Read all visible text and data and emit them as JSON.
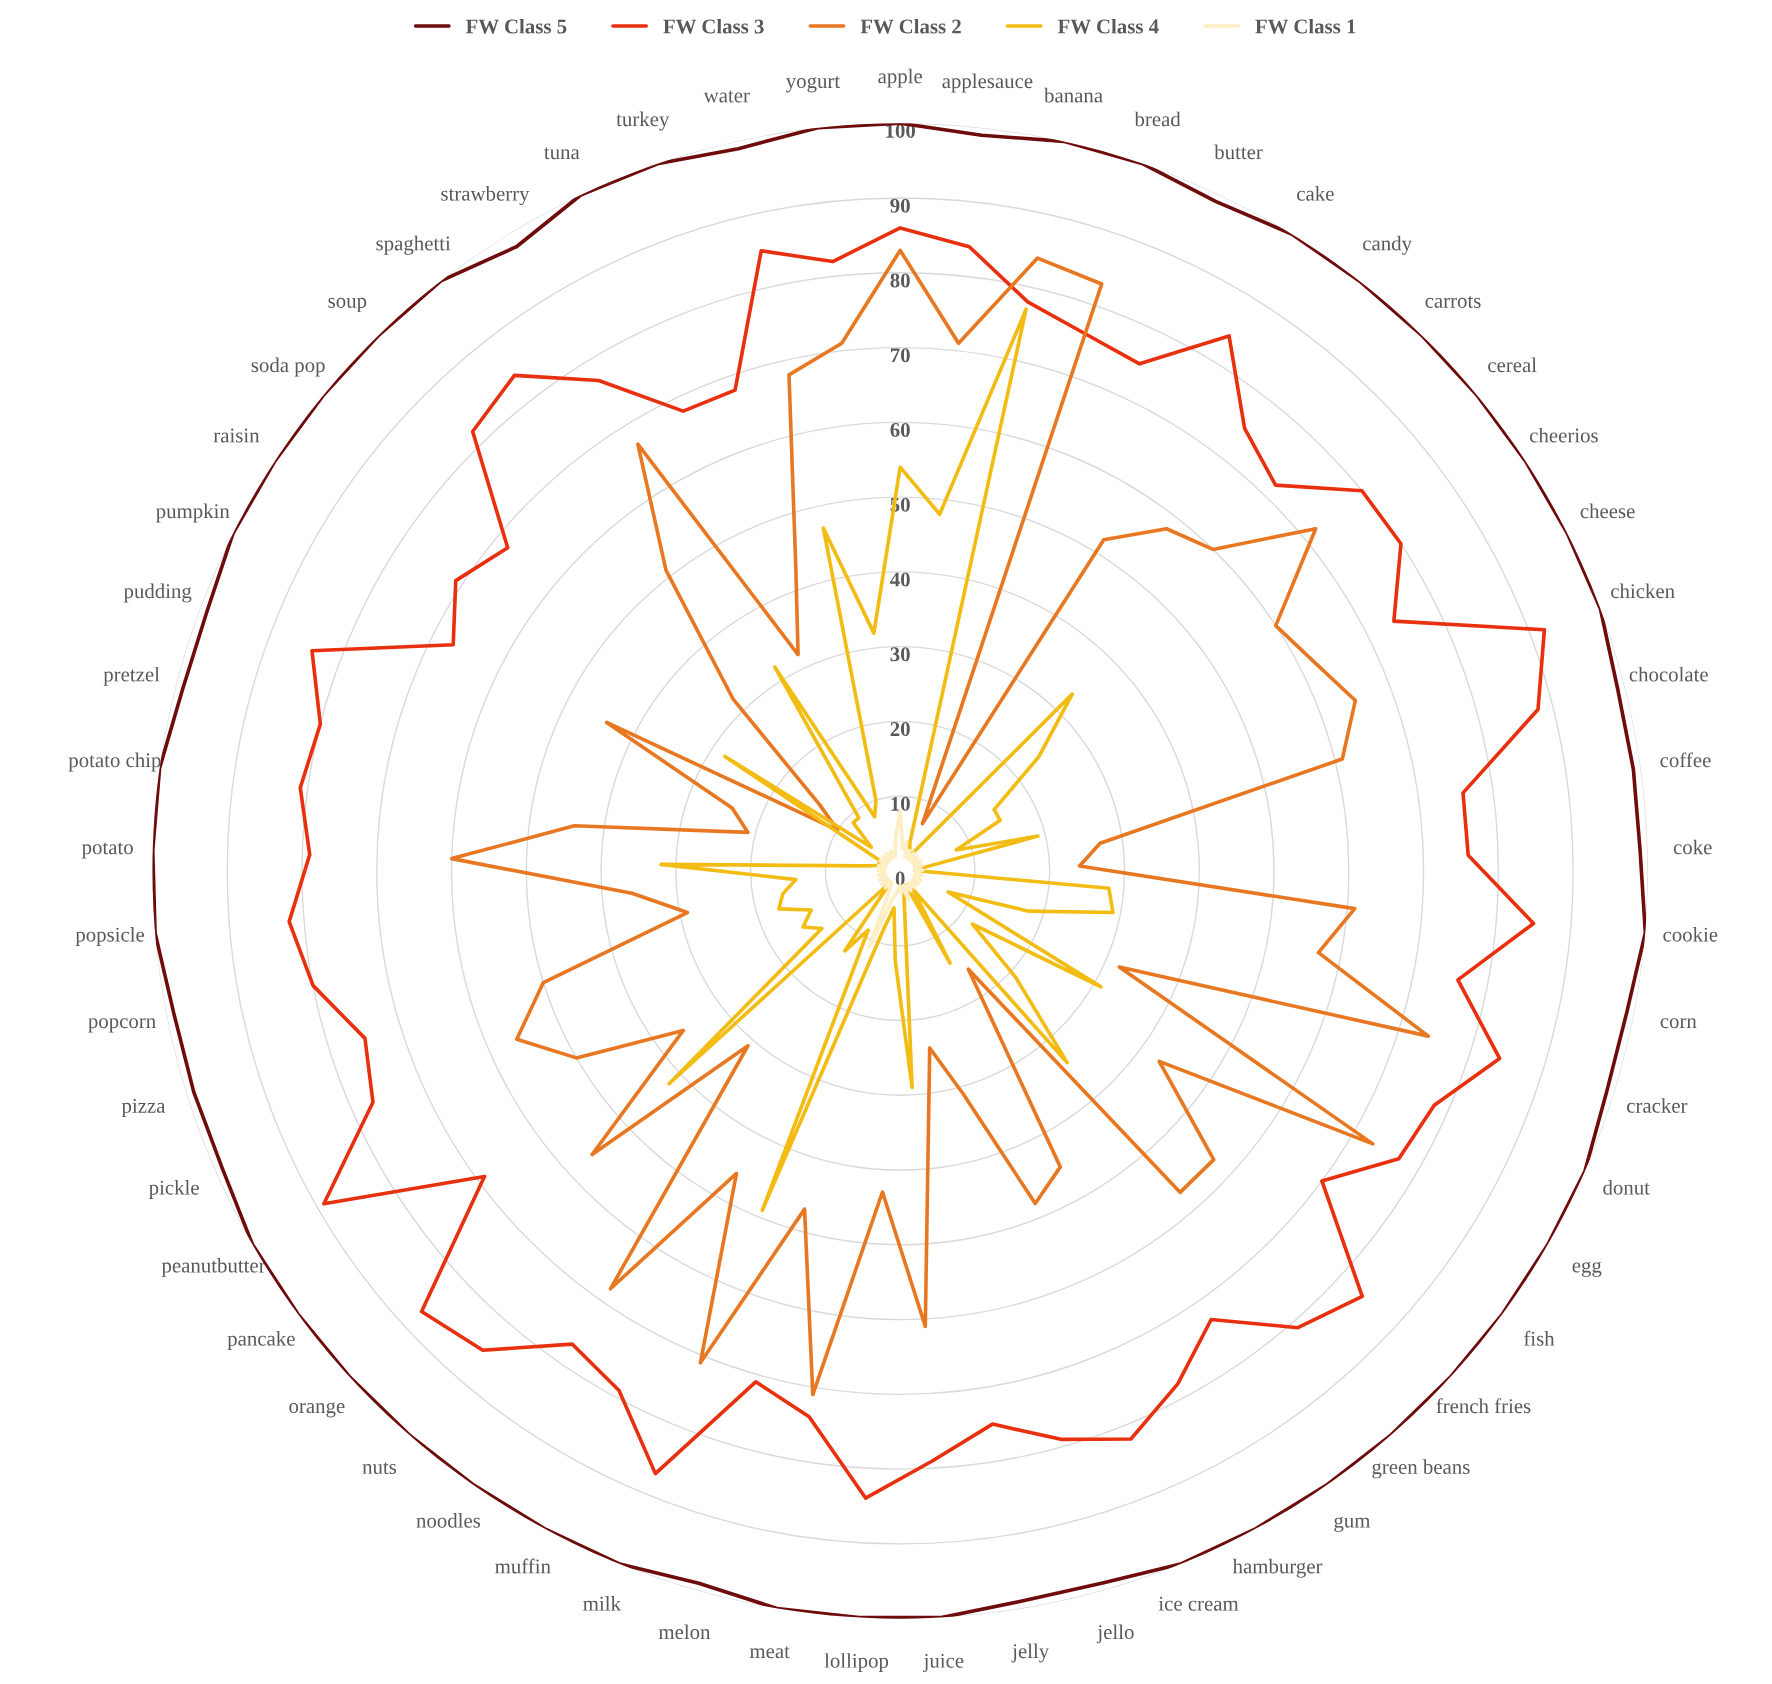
{
  "chart_data": {
    "type": "radar",
    "categories": [
      "apple",
      "applesauce",
      "banana",
      "bread",
      "butter",
      "cake",
      "candy",
      "carrots",
      "cereal",
      "cheerios",
      "cheese",
      "chicken",
      "chocolate",
      "coffee",
      "coke",
      "cookie",
      "corn",
      "cracker",
      "donut",
      "egg",
      "fish",
      "french fries",
      "green beans",
      "gum",
      "hamburger",
      "ice cream",
      "jello",
      "jelly",
      "juice",
      "lollipop",
      "meat",
      "melon",
      "milk",
      "muffin",
      "noodles",
      "nuts",
      "orange",
      "pancake",
      "peanutbutter",
      "pickle",
      "pizza",
      "popcorn",
      "popsicle",
      "potato",
      "potato chip",
      "pretzel",
      "pudding",
      "pumpkin",
      "raisin",
      "soda pop",
      "soup",
      "spaghetti",
      "strawberry",
      "tuna",
      "turkey",
      "water",
      "yogurt"
    ],
    "series": [
      {
        "name": "FW Class 5",
        "color": "#6e0b0b",
        "values": [
          100,
          99,
          100,
          100,
          99,
          100,
          100,
          100,
          100,
          100,
          100,
          100,
          99,
          99,
          99,
          100,
          99,
          99,
          100,
          100,
          100,
          100,
          100,
          100,
          100,
          100,
          99,
          99,
          100,
          100,
          100,
          99,
          100,
          100,
          100,
          100,
          100,
          100,
          100,
          99,
          99,
          99,
          100,
          100,
          100,
          99,
          99,
          100,
          100,
          100,
          100,
          100,
          98,
          100,
          100,
          99,
          100
        ]
      },
      {
        "name": "FW Class 3",
        "color": "#e8300e",
        "values": [
          86,
          84,
          78,
          76,
          75,
          84,
          75,
          72,
          80,
          80,
          74,
          92,
          88,
          76,
          76,
          85,
          76,
          84,
          78,
          77,
          70,
          84,
          81,
          73,
          78,
          82,
          79,
          75,
          79,
          84,
          74,
          71,
          87,
          79,
          77,
          85,
          87,
          69,
          89,
          77,
          75,
          80,
          82,
          79,
          81,
          80,
          84,
          67,
          71,
          68,
          82,
          84,
          77,
          68,
          68,
          85,
          82
        ]
      },
      {
        "name": "FW Class 2",
        "color": "#e87722",
        "values": [
          83,
          71,
          84,
          83,
          7,
          52,
          58,
          60,
          72,
          60,
          62,
          65,
          61,
          27,
          24,
          61,
          57,
          74,
          32,
          73,
          43,
          57,
          57,
          16,
          45,
          48,
          31,
          24,
          61,
          43,
          71,
          47,
          71,
          46,
          68,
          31,
          56,
          36,
          50,
          56,
          50,
          29,
          36,
          60,
          44,
          21,
          24,
          44,
          10,
          14,
          32,
          51,
          67,
          32,
          43,
          68,
          71
        ]
      },
      {
        "name": "FW Class 4",
        "color": "#f2bc13",
        "values": [
          54,
          48,
          77,
          4,
          3,
          2,
          4,
          33,
          24,
          15,
          15,
          8,
          19,
          3,
          2,
          28,
          29,
          18,
          7,
          31,
          12,
          21,
          34,
          3,
          14,
          2,
          2,
          3,
          29,
          12,
          5,
          8,
          49,
          9,
          13,
          2,
          42,
          13,
          15,
          13,
          17,
          16,
          14,
          32,
          5,
          3,
          3,
          3,
          28,
          5,
          9,
          9,
          32,
          8,
          10,
          47,
          32
        ]
      },
      {
        "name": "FW Class 1",
        "color": "#fdeec4",
        "values": [
          8,
          3,
          4,
          2,
          3,
          2,
          3,
          2,
          3,
          2,
          3,
          2,
          3,
          2,
          3,
          2,
          3,
          2,
          3,
          2,
          3,
          2,
          3,
          2,
          3,
          2,
          4,
          2,
          3,
          2,
          3,
          4,
          11,
          3,
          2,
          3,
          2,
          3,
          2,
          3,
          2,
          3,
          2,
          3,
          2,
          3,
          2,
          3,
          2,
          3,
          2,
          3,
          2,
          3,
          2,
          3,
          5
        ]
      }
    ],
    "ylim": [
      0,
      100
    ],
    "yticks": [
      0,
      10,
      20,
      30,
      40,
      50,
      60,
      70,
      80,
      90,
      100
    ],
    "grid": "y",
    "legend": "top"
  }
}
